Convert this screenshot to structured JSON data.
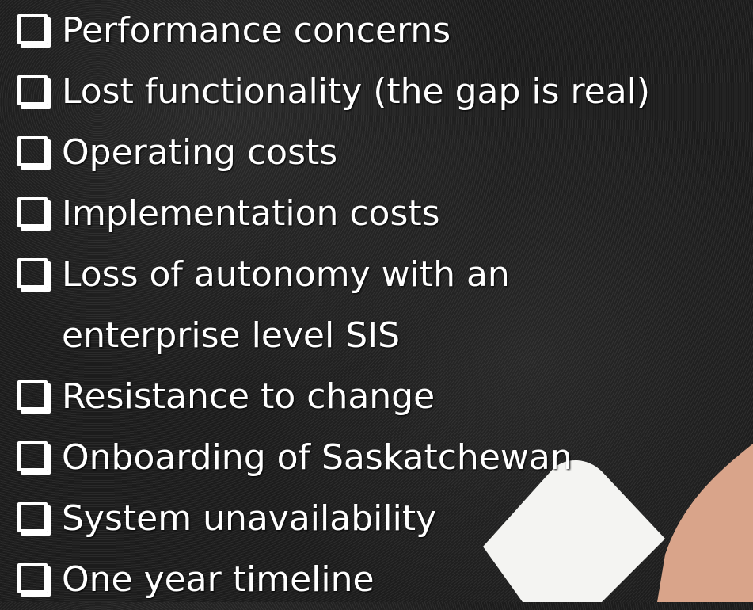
{
  "slide": {
    "items": [
      {
        "lines": [
          "Performance concerns"
        ]
      },
      {
        "lines": [
          "Lost functionality (the gap is real)"
        ]
      },
      {
        "lines": [
          "Operating costs"
        ]
      },
      {
        "lines": [
          "Implementation costs"
        ]
      },
      {
        "lines": [
          "Loss of autonomy with an",
          "enterprise level SIS"
        ]
      },
      {
        "lines": [
          "Resistance to change"
        ]
      },
      {
        "lines": [
          "Onboarding of Saskatchewan"
        ]
      },
      {
        "lines": [
          "System unavailability"
        ]
      },
      {
        "lines": [
          "One year timeline"
        ]
      }
    ]
  }
}
